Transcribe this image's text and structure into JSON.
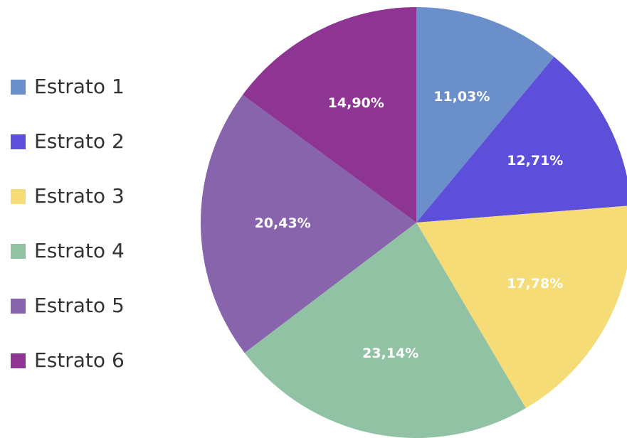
{
  "chart_data": {
    "type": "pie",
    "categories": [
      "Estrato 1",
      "Estrato 2",
      "Estrato 3",
      "Estrato 4",
      "Estrato 5",
      "Estrato 6"
    ],
    "values": [
      11.03,
      12.71,
      17.78,
      23.14,
      20.43,
      14.9
    ],
    "value_labels": [
      "11,03%",
      "12,71%",
      "17,78%",
      "23,14%",
      "20,43%",
      "14,90%"
    ],
    "colors": [
      "#6a8fcb",
      "#5e4fdb",
      "#f5dc76",
      "#92c2a4",
      "#8764ac",
      "#8e3594"
    ],
    "legend": "left"
  }
}
